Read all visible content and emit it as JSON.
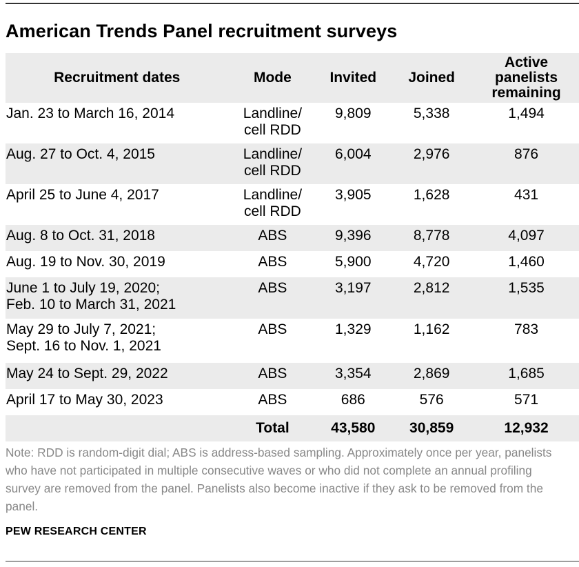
{
  "title": "American Trends Panel recruitment surveys",
  "table": {
    "headers": {
      "dates": "Recruitment dates",
      "mode": "Mode",
      "invited": "Invited",
      "joined": "Joined",
      "active_1": "Active",
      "active_2": "panelists",
      "active_3": "remaining"
    },
    "rows": [
      {
        "date_1": "Jan. 23 to March 16, 2014",
        "date_2": "",
        "mode_1": "Landline/",
        "mode_2": "cell RDD",
        "invited": "9,809",
        "joined": "5,338",
        "active": "1,494"
      },
      {
        "date_1": "Aug. 27 to Oct. 4, 2015",
        "date_2": "",
        "mode_1": "Landline/",
        "mode_2": "cell RDD",
        "invited": "6,004",
        "joined": "2,976",
        "active": "876"
      },
      {
        "date_1": "April 25 to June 4, 2017",
        "date_2": "",
        "mode_1": "Landline/",
        "mode_2": "cell RDD",
        "invited": "3,905",
        "joined": "1,628",
        "active": "431"
      },
      {
        "date_1": "Aug. 8 to Oct. 31, 2018",
        "date_2": "",
        "mode_1": "ABS",
        "mode_2": "",
        "invited": "9,396",
        "joined": "8,778",
        "active": "4,097"
      },
      {
        "date_1": "Aug. 19 to Nov. 30, 2019",
        "date_2": "",
        "mode_1": "ABS",
        "mode_2": "",
        "invited": "5,900",
        "joined": "4,720",
        "active": "1,460"
      },
      {
        "date_1": "June 1 to July 19, 2020;",
        "date_2": "Feb. 10 to March 31, 2021",
        "mode_1": "ABS",
        "mode_2": "",
        "invited": "3,197",
        "joined": "2,812",
        "active": "1,535"
      },
      {
        "date_1": "May 29 to July 7, 2021;",
        "date_2": "Sept. 16 to Nov. 1, 2021",
        "mode_1": "ABS",
        "mode_2": "",
        "invited": "1,329",
        "joined": "1,162",
        "active": "783"
      },
      {
        "date_1": "May 24 to Sept. 29, 2022",
        "date_2": "",
        "mode_1": "ABS",
        "mode_2": "",
        "invited": "3,354",
        "joined": "2,869",
        "active": "1,685"
      },
      {
        "date_1": "April 17 to May 30, 2023",
        "date_2": "",
        "mode_1": "ABS",
        "mode_2": "",
        "invited": "686",
        "joined": "576",
        "active": "571"
      }
    ],
    "total": {
      "label": "Total",
      "invited": "43,580",
      "joined": "30,859",
      "active": "12,932"
    }
  },
  "note": "Note: RDD is random-digit dial; ABS is address-based sampling. Approximately once per year, panelists who have not participated in multiple consecutive waves or who did not complete an annual profiling survey are removed from the panel. Panelists also become inactive if they ask to be removed from the panel.",
  "source": "PEW RESEARCH CENTER"
}
